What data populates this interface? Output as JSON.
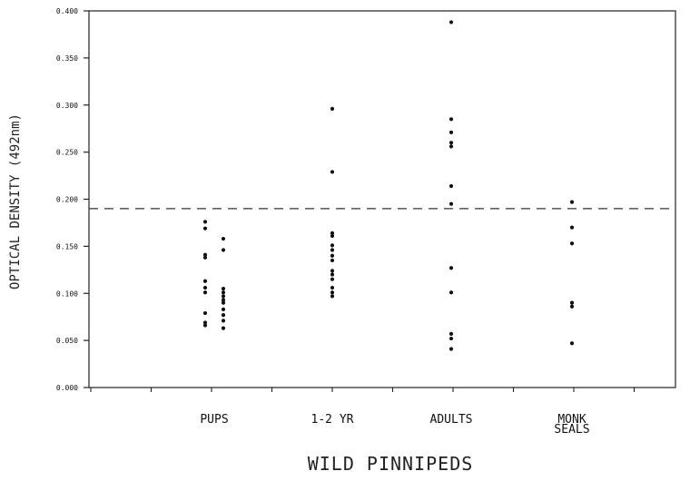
{
  "chart_data": {
    "type": "scatter",
    "title": "",
    "xlabel": "WILD PINNIPEDS",
    "ylabel": "OPTICAL DENSITY (492nm)",
    "ylim": [
      0,
      0.4
    ],
    "yticks": [
      "0.000",
      "0.050",
      "0.100",
      "0.150",
      "0.200",
      "0.250",
      "0.300",
      "0.350",
      "0.400"
    ],
    "grid": false,
    "threshold": 0.19,
    "categories": [
      {
        "lines": [
          "PUPS"
        ]
      },
      {
        "lines": [
          "1-2 YR"
        ]
      },
      {
        "lines": [
          "ADULTS"
        ]
      },
      {
        "lines": [
          "MONK",
          "SEALS"
        ]
      }
    ],
    "series": [
      {
        "category": "PUPS",
        "points": [
          [
            -0.35,
            0.176
          ],
          [
            -0.35,
            0.169
          ],
          [
            -0.35,
            0.141
          ],
          [
            -0.35,
            0.138
          ],
          [
            -0.35,
            0.113
          ],
          [
            -0.35,
            0.106
          ],
          [
            -0.35,
            0.101
          ],
          [
            -0.35,
            0.079
          ],
          [
            -0.35,
            0.069
          ],
          [
            -0.35,
            0.066
          ],
          [
            0.35,
            0.158
          ],
          [
            0.35,
            0.146
          ],
          [
            0.35,
            0.105
          ],
          [
            0.35,
            0.101
          ],
          [
            0.35,
            0.097
          ],
          [
            0.35,
            0.093
          ],
          [
            0.35,
            0.09
          ],
          [
            0.35,
            0.083
          ],
          [
            0.35,
            0.077
          ],
          [
            0.35,
            0.071
          ],
          [
            0.35,
            0.063
          ]
        ]
      },
      {
        "category": "1-2 YR",
        "points": [
          [
            0,
            0.296
          ],
          [
            0,
            0.229
          ],
          [
            0,
            0.164
          ],
          [
            0,
            0.161
          ],
          [
            0,
            0.151
          ],
          [
            0,
            0.146
          ],
          [
            0,
            0.14
          ],
          [
            0,
            0.135
          ],
          [
            0,
            0.124
          ],
          [
            0,
            0.12
          ],
          [
            0,
            0.115
          ],
          [
            0,
            0.106
          ],
          [
            0,
            0.101
          ],
          [
            0,
            0.097
          ]
        ]
      },
      {
        "category": "ADULTS",
        "points": [
          [
            0,
            0.388
          ],
          [
            0,
            0.285
          ],
          [
            0,
            0.271
          ],
          [
            0,
            0.26
          ],
          [
            0,
            0.256
          ],
          [
            0,
            0.214
          ],
          [
            0,
            0.195
          ],
          [
            0,
            0.127
          ],
          [
            0,
            0.101
          ],
          [
            0,
            0.057
          ],
          [
            0,
            0.052
          ],
          [
            0,
            0.041
          ]
        ]
      },
      {
        "category": "MONK SEALS",
        "points": [
          [
            0,
            0.197
          ],
          [
            0,
            0.17
          ],
          [
            0,
            0.153
          ],
          [
            0,
            0.09
          ],
          [
            0,
            0.086
          ],
          [
            0,
            0.047
          ]
        ]
      }
    ]
  }
}
